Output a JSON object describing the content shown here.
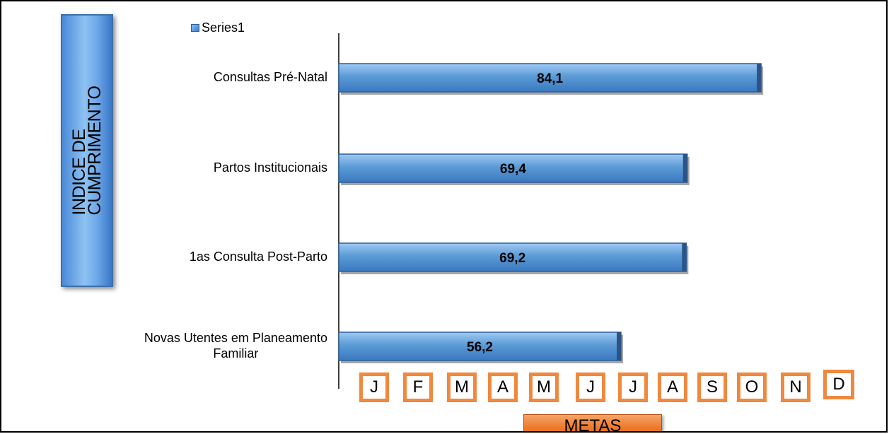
{
  "side_label": "INDICE DE\nCUMPRIMENTO",
  "footer_button": "METAS",
  "months": [
    "J",
    "F",
    "M",
    "A",
    "M",
    "J",
    "J",
    "A",
    "S",
    "O",
    "N",
    "D"
  ],
  "colors": {
    "bar": "#5b9bd5",
    "bar_dark": "#2e5f99",
    "month_border": "#f0883e"
  },
  "chart_data": {
    "type": "bar",
    "orientation": "horizontal",
    "categories": [
      "Consultas Pré-Natal",
      "Partos Institucionais",
      "1as Consulta Post-Parto",
      "Novas Utentes em Planeamento Familiar"
    ],
    "category_label_lines": [
      [
        "Consultas Pré-Natal"
      ],
      [
        "Partos Institucionais"
      ],
      [
        "1as Consulta Post-Parto"
      ],
      [
        "Novas Utentes em Planeamento",
        "Familiar"
      ]
    ],
    "series": [
      {
        "name": "Series1",
        "values": [
          84.1,
          69.4,
          69.2,
          56.2
        ]
      }
    ],
    "value_labels": [
      "84,1",
      "69,4",
      "69,2",
      "56,2"
    ],
    "xlim": [
      0,
      100
    ],
    "legend": "top-left",
    "grid": false
  }
}
